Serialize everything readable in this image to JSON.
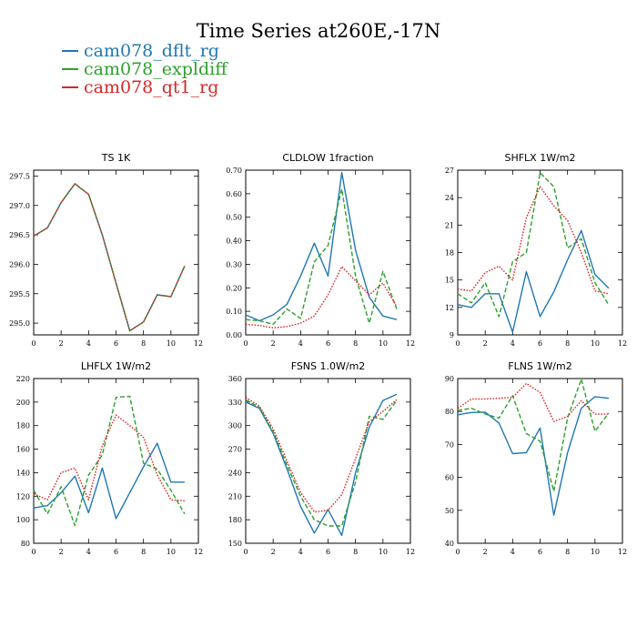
{
  "figure": {
    "title": "Time Series at260E,-17N",
    "legend": [
      {
        "name": "cam078_dflt_rg",
        "color": "#1f77b4",
        "dash": "solid"
      },
      {
        "name": "cam078_expldiff",
        "color": "#2ca02c",
        "dash": "dashed"
      },
      {
        "name": "cam078_qt1_rg",
        "color": "#d62728",
        "dash": "dotted"
      }
    ]
  },
  "chart_data": [
    {
      "type": "line",
      "title": "TS   1K",
      "x": [
        0,
        1,
        2,
        3,
        4,
        5,
        6,
        7,
        8,
        9,
        10,
        11
      ],
      "xlim": [
        0,
        12
      ],
      "xticks": [
        "0",
        "2",
        "4",
        "6",
        "8",
        "10",
        "12"
      ],
      "ylim": [
        294.8,
        297.6
      ],
      "yticks": [
        "295.0",
        "295.5",
        "296.0",
        "296.5",
        "297.0",
        "297.5"
      ],
      "series": [
        {
          "name": "cam078_dflt_rg",
          "values": [
            296.48,
            296.62,
            297.05,
            297.37,
            297.19,
            296.5,
            295.68,
            294.87,
            295.02,
            295.48,
            295.45,
            295.97
          ]
        },
        {
          "name": "cam078_expldiff",
          "values": [
            296.48,
            296.62,
            297.05,
            297.37,
            297.19,
            296.5,
            295.68,
            294.87,
            295.02,
            295.48,
            295.45,
            295.97
          ]
        },
        {
          "name": "cam078_qt1_rg",
          "values": [
            296.48,
            296.62,
            297.05,
            297.37,
            297.19,
            296.5,
            295.68,
            294.87,
            295.02,
            295.48,
            295.45,
            295.97
          ]
        }
      ]
    },
    {
      "type": "line",
      "title": "CLDLOW   1fraction",
      "x": [
        0,
        1,
        2,
        3,
        4,
        5,
        6,
        7,
        8,
        9,
        10,
        11
      ],
      "xlim": [
        0,
        12
      ],
      "xticks": [
        "0",
        "2",
        "4",
        "6",
        "8",
        "10",
        "12"
      ],
      "ylim": [
        0,
        0.7
      ],
      "yticks": [
        "0.00",
        "0.10",
        "0.20",
        "0.30",
        "0.40",
        "0.50",
        "0.60",
        "0.70"
      ],
      "series": [
        {
          "name": "cam078_dflt_rg",
          "values": [
            0.085,
            0.06,
            0.085,
            0.13,
            0.25,
            0.39,
            0.25,
            0.69,
            0.36,
            0.16,
            0.08,
            0.065
          ]
        },
        {
          "name": "cam078_expldiff",
          "values": [
            0.065,
            0.06,
            0.045,
            0.11,
            0.07,
            0.31,
            0.38,
            0.62,
            0.25,
            0.05,
            0.27,
            0.11
          ]
        },
        {
          "name": "cam078_qt1_rg",
          "values": [
            0.045,
            0.04,
            0.03,
            0.035,
            0.05,
            0.08,
            0.17,
            0.29,
            0.23,
            0.17,
            0.22,
            0.12
          ]
        }
      ]
    },
    {
      "type": "line",
      "title": "SHFLX   1W/m2",
      "x": [
        0,
        1,
        2,
        3,
        4,
        5,
        6,
        7,
        8,
        9,
        10,
        11
      ],
      "xlim": [
        0,
        12
      ],
      "xticks": [
        "0",
        "2",
        "4",
        "6",
        "8",
        "10",
        "12"
      ],
      "ylim": [
        9,
        27
      ],
      "yticks": [
        "9",
        "12",
        "15",
        "18",
        "21",
        "24",
        "27"
      ],
      "series": [
        {
          "name": "cam078_dflt_rg",
          "values": [
            12.3,
            12.0,
            13.5,
            13.5,
            9.3,
            15.9,
            11.0,
            13.7,
            17.2,
            20.4,
            15.6,
            14.1
          ]
        },
        {
          "name": "cam078_expldiff",
          "values": [
            13.5,
            12.5,
            14.7,
            11.0,
            17.0,
            18.0,
            26.7,
            25.2,
            18.5,
            19.5,
            14.7,
            12.3
          ]
        },
        {
          "name": "cam078_qt1_rg",
          "values": [
            14.0,
            13.8,
            15.8,
            16.5,
            15.0,
            21.8,
            25.2,
            23.1,
            21.5,
            18.0,
            13.8,
            13.5
          ]
        }
      ]
    },
    {
      "type": "line",
      "title": "LHFLX   1W/m2",
      "x": [
        0,
        1,
        2,
        3,
        4,
        5,
        6,
        7,
        8,
        9,
        10,
        11
      ],
      "xlim": [
        0,
        12
      ],
      "xticks": [
        "0",
        "2",
        "4",
        "6",
        "8",
        "10",
        "12"
      ],
      "ylim": [
        80,
        220
      ],
      "yticks": [
        "80",
        "100",
        "120",
        "140",
        "160",
        "180",
        "200",
        "220"
      ],
      "series": [
        {
          "name": "cam078_dflt_rg",
          "values": [
            110,
            112,
            123,
            137,
            106,
            144,
            101,
            123,
            145,
            165,
            132,
            132
          ]
        },
        {
          "name": "cam078_expldiff",
          "values": [
            125,
            105,
            128,
            95,
            138,
            155,
            204,
            205,
            148,
            143,
            125,
            105
          ]
        },
        {
          "name": "cam078_qt1_rg",
          "values": [
            122,
            117,
            140,
            144,
            117,
            163,
            189,
            180,
            170,
            138,
            117,
            116
          ]
        }
      ]
    },
    {
      "type": "line",
      "title": "FSNS   1.0W/m2",
      "x": [
        0,
        1,
        2,
        3,
        4,
        5,
        6,
        7,
        8,
        9,
        10,
        11
      ],
      "xlim": [
        0,
        12
      ],
      "xticks": [
        "0",
        "2",
        "4",
        "6",
        "8",
        "10",
        "12"
      ],
      "ylim": [
        150,
        360
      ],
      "yticks": [
        "150",
        "180",
        "210",
        "240",
        "270",
        "300",
        "330",
        "360"
      ],
      "series": [
        {
          "name": "cam078_dflt_rg",
          "values": [
            330,
            322,
            290,
            245,
            197,
            163,
            193,
            160,
            240,
            298,
            332,
            340
          ]
        },
        {
          "name": "cam078_expldiff",
          "values": [
            333,
            323,
            292,
            250,
            210,
            180,
            172,
            172,
            228,
            312,
            308,
            332
          ]
        },
        {
          "name": "cam078_qt1_rg",
          "values": [
            336,
            325,
            296,
            255,
            215,
            190,
            192,
            212,
            258,
            305,
            318,
            333
          ]
        }
      ]
    },
    {
      "type": "line",
      "title": "FLNS   1W/m2",
      "x": [
        0,
        1,
        2,
        3,
        4,
        5,
        6,
        7,
        8,
        9,
        10,
        11
      ],
      "xlim": [
        0,
        12
      ],
      "xticks": [
        "0",
        "2",
        "4",
        "6",
        "8",
        "10",
        "12"
      ],
      "ylim": [
        40,
        90
      ],
      "yticks": [
        "40",
        "50",
        "60",
        "70",
        "80",
        "90"
      ],
      "series": [
        {
          "name": "cam078_dflt_rg",
          "values": [
            79.0,
            79.7,
            79.8,
            76.5,
            67.2,
            67.5,
            75.0,
            48.5,
            67.5,
            81.0,
            84.5,
            84.0
          ]
        },
        {
          "name": "cam078_expldiff",
          "values": [
            80.3,
            81.0,
            79.2,
            78.0,
            84.8,
            73.3,
            71.0,
            55.8,
            78.0,
            89.8,
            74.0,
            79.5
          ]
        },
        {
          "name": "cam078_qt1_rg",
          "values": [
            81.0,
            83.8,
            83.8,
            84.0,
            84.3,
            88.5,
            85.8,
            77.0,
            78.5,
            83.3,
            79.2,
            79.2
          ]
        }
      ]
    }
  ]
}
